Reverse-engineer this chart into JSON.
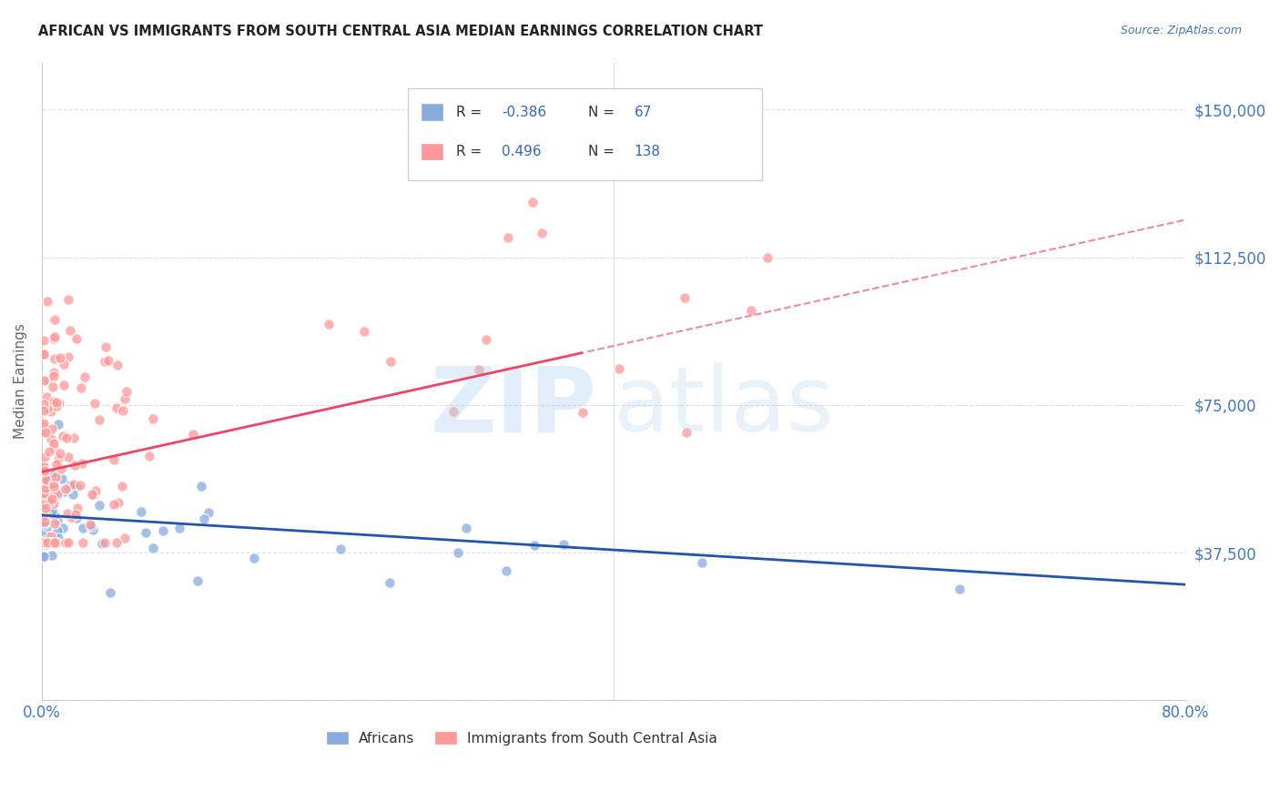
{
  "title": "AFRICAN VS IMMIGRANTS FROM SOUTH CENTRAL ASIA MEDIAN EARNINGS CORRELATION CHART",
  "source": "Source: ZipAtlas.com",
  "ylabel": "Median Earnings",
  "yticks": [
    0,
    37500,
    75000,
    112500,
    150000
  ],
  "ytick_labels_right": [
    "",
    "$37,500",
    "$75,000",
    "$112,500",
    "$150,000"
  ],
  "ylim": [
    0,
    162000
  ],
  "xlim": [
    0.0,
    0.8
  ],
  "blue_color": "#88AADD",
  "pink_color": "#FF9999",
  "blue_line_color": "#2255AA",
  "pink_line_color": "#EE4466",
  "pink_dash_color": "#EE88AA",
  "axis_color": "#4477BB",
  "grid_color": "#DDDDEE",
  "title_color": "#222222",
  "watermark_zip_color": "#AACCEE",
  "watermark_atlas_color": "#AACCEE",
  "legend_box_color": "#EEEEFF",
  "legend_R_label_color": "#333333",
  "legend_R_value_color": "#3366BB",
  "legend_N_value_color": "#3366BB",
  "blue_R": "-0.386",
  "blue_N": "67",
  "pink_R": "0.496",
  "pink_N": "138",
  "blue_intercept": 47000,
  "blue_slope": -22000,
  "pink_intercept": 58000,
  "pink_slope": 80000
}
